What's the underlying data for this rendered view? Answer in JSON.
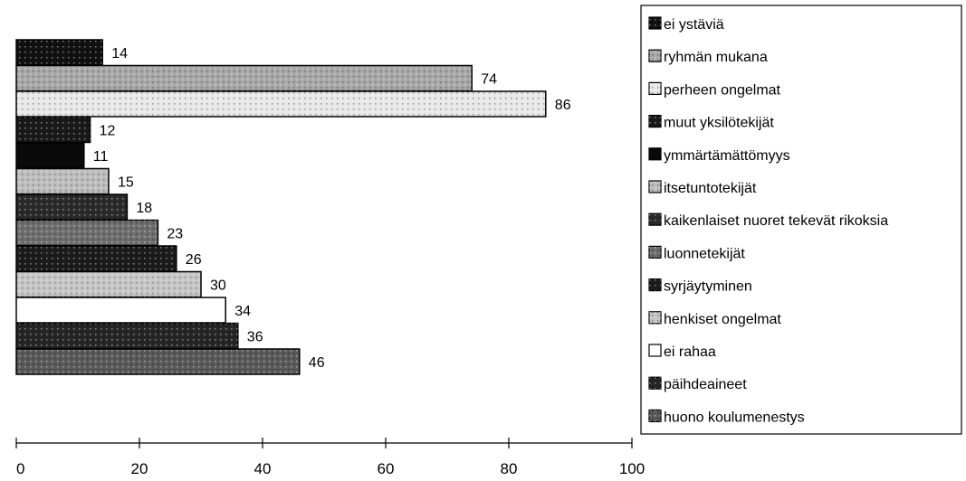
{
  "chart_data": {
    "type": "bar",
    "orientation": "horizontal",
    "categories": [
      "ei ystäviä",
      "ryhmän mukana",
      "perheen ongelmat",
      "muut yksilötekijät",
      "ymmärtämättömyys",
      "itsetuntotekijät",
      "kaikenlaiset nuoret tekevät rikoksia",
      "luonnetekijät",
      "syrjäytyminen",
      "henkiset ongelmat",
      "ei rahaa",
      "päihdeaineet",
      "huono koulumenestys"
    ],
    "values": [
      14,
      74,
      86,
      12,
      11,
      15,
      18,
      23,
      26,
      30,
      34,
      36,
      46
    ],
    "xlim": [
      0,
      100
    ],
    "xticks": [
      0,
      20,
      40,
      60,
      80,
      100
    ],
    "title": "",
    "xlabel": "",
    "ylabel": "",
    "legend_position": "right",
    "grid": false,
    "data_labels": true,
    "fills": [
      "#111111",
      "#a8a8a8",
      "#e8e8e8",
      "#1a1a1a",
      "#0a0a0a",
      "#bdbdbd",
      "#2b2b2b",
      "#6e6e6e",
      "#1c1c1c",
      "#c6c6c6",
      "#ffffff",
      "#262626",
      "#5a5a5a"
    ]
  }
}
